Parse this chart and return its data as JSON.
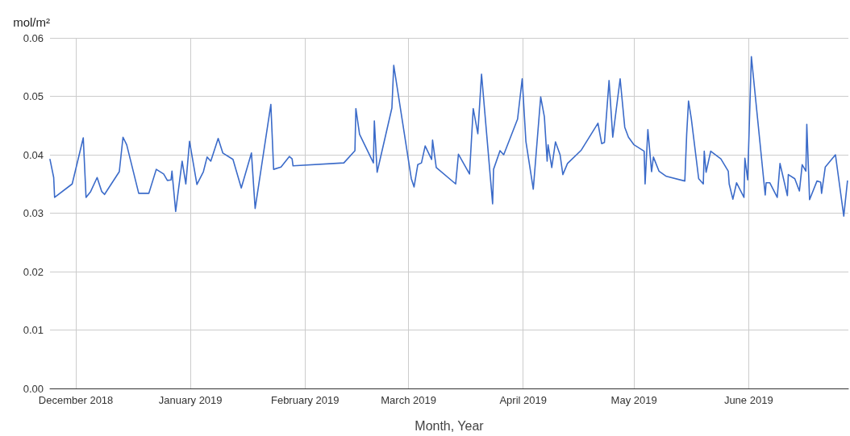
{
  "chart_data": {
    "type": "line",
    "xlabel": "Month, Year",
    "ylabel": "mol/m²",
    "xlim": [
      "2018-11-24",
      "2019-06-28"
    ],
    "xticks": [
      {
        "value": "2018-12-01",
        "label": "December 2018"
      },
      {
        "value": "2019-01-01",
        "label": "January 2019"
      },
      {
        "value": "2019-02-01",
        "label": "February 2019"
      },
      {
        "value": "2019-03-01",
        "label": "March 2019"
      },
      {
        "value": "2019-04-01",
        "label": "April 2019"
      },
      {
        "value": "2019-05-01",
        "label": "May 2019"
      },
      {
        "value": "2019-06-01",
        "label": "June 2019"
      }
    ],
    "ylim": [
      0,
      0.06
    ],
    "yticks": [
      {
        "value": 0,
        "label": "0.00"
      },
      0.01,
      0.02,
      0.03,
      0.04,
      0.05,
      0.06
    ],
    "grid": true,
    "marker": "none",
    "line_style": "solid",
    "x": [
      "2018-11-24T00:00",
      "2018-11-25T00:00",
      "2018-11-25T06:00",
      "2018-11-30T00:00",
      "2018-12-03T00:00",
      "2018-12-03T18:00",
      "2018-12-05T00:00",
      "2018-12-06T18:00",
      "2018-12-08T00:00",
      "2018-12-08T18:00",
      "2018-12-12T18:00",
      "2018-12-13T18:00",
      "2018-12-14T18:00",
      "2018-12-18T00:00",
      "2018-12-20T18:00",
      "2018-12-22T18:00",
      "2018-12-24T18:00",
      "2018-12-25T18:00",
      "2018-12-26T18:00",
      "2018-12-27T00:00",
      "2018-12-27T06:00",
      "2018-12-28T00:00",
      "2018-12-29T18:00",
      "2018-12-30T18:00",
      "2018-12-31T18:00",
      "2019-01-02T18:00",
      "2019-01-04T12:00",
      "2019-01-05T12:00",
      "2019-01-06T12:00",
      "2019-01-08T12:00",
      "2019-01-09T18:00",
      "2019-01-12T12:00",
      "2019-01-14T18:00",
      "2019-01-17T12:00",
      "2019-01-18T12:00",
      "2019-01-22T18:00",
      "2019-01-23T12:00",
      "2019-01-25T12:00",
      "2019-01-27T18:00",
      "2019-01-28T12:00",
      "2019-01-28T18:00",
      "2019-02-11T12:00",
      "2019-02-14T12:00",
      "2019-02-14T18:00",
      "2019-02-15T18:00",
      "2019-02-19T12:00",
      "2019-02-19T18:00",
      "2019-02-20T12:00",
      "2019-02-24T12:00",
      "2019-02-25T00:00",
      "2019-03-01T18:00",
      "2019-03-02T12:00",
      "2019-03-03T12:00",
      "2019-03-04T12:00",
      "2019-03-05T12:00",
      "2019-03-07T06:00",
      "2019-03-07T12:00",
      "2019-03-08T12:00",
      "2019-03-13T18:00",
      "2019-03-14T12:00",
      "2019-03-17T12:00",
      "2019-03-18T12:00",
      "2019-03-19T18:00",
      "2019-03-20T18:00",
      "2019-03-23T18:00",
      "2019-03-24T00:00",
      "2019-03-25T18:00",
      "2019-03-26T18:00",
      "2019-03-30T12:00",
      "2019-03-31T18:00",
      "2019-04-01T18:00",
      "2019-04-03T18:00",
      "2019-04-05T18:00",
      "2019-04-06T18:00",
      "2019-04-07T12:00",
      "2019-04-07T18:00",
      "2019-04-08T18:00",
      "2019-04-09T18:00",
      "2019-04-11T00:00",
      "2019-04-11T18:00",
      "2019-04-13T00:00",
      "2019-04-16T18:00",
      "2019-04-21T06:00",
      "2019-04-22T06:00",
      "2019-04-23T00:00",
      "2019-04-24T06:00",
      "2019-04-25T06:00",
      "2019-04-27T06:00",
      "2019-04-28T12:00",
      "2019-04-29T12:00",
      "2019-05-01T00:00",
      "2019-05-03T18:00",
      "2019-05-04T00:00",
      "2019-05-04T18:00",
      "2019-05-05T18:00",
      "2019-05-06T06:00",
      "2019-05-07T18:00",
      "2019-05-09T18:00",
      "2019-05-14T18:00",
      "2019-05-15T06:00",
      "2019-05-15T18:00",
      "2019-05-16T12:00",
      "2019-05-18T12:00",
      "2019-05-19T18:00",
      "2019-05-20T00:00",
      "2019-05-20T12:00",
      "2019-05-21T18:00",
      "2019-05-24T12:00",
      "2019-05-26T12:00",
      "2019-05-26T18:00",
      "2019-05-27T18:00",
      "2019-05-28T18:00",
      "2019-05-30T18:00",
      "2019-05-31T00:00",
      "2019-05-31T18:00",
      "2019-06-01T18:00",
      "2019-06-05T12:00",
      "2019-06-05T18:00",
      "2019-06-06T18:00",
      "2019-06-08T18:00",
      "2019-06-09T12:00",
      "2019-06-11T12:00",
      "2019-06-11T18:00",
      "2019-06-13T12:00",
      "2019-06-14T18:00",
      "2019-06-15T12:00",
      "2019-06-16T12:00",
      "2019-06-16T18:00",
      "2019-06-17T12:00",
      "2019-06-19T12:00",
      "2019-06-20T12:00",
      "2019-06-20T18:00",
      "2019-06-21T18:00",
      "2019-06-24T12:00",
      "2019-06-26T18:00",
      "2019-06-27T18:00"
    ],
    "series": [
      {
        "color": "#3b6bc9",
        "values": [
          0.0392,
          0.0361,
          0.0327,
          0.035,
          0.0429,
          0.0327,
          0.0337,
          0.0361,
          0.0337,
          0.0332,
          0.0371,
          0.043,
          0.0417,
          0.0334,
          0.0334,
          0.0375,
          0.0367,
          0.0356,
          0.0357,
          0.0372,
          0.0354,
          0.0303,
          0.0389,
          0.035,
          0.0423,
          0.0349,
          0.0371,
          0.0396,
          0.0389,
          0.0428,
          0.0403,
          0.0392,
          0.0343,
          0.0403,
          0.0308,
          0.0486,
          0.0375,
          0.0379,
          0.0397,
          0.0393,
          0.0381,
          0.0386,
          0.0407,
          0.0479,
          0.0435,
          0.0386,
          0.0458,
          0.037,
          0.048,
          0.0553,
          0.0359,
          0.0345,
          0.0383,
          0.0386,
          0.0415,
          0.0392,
          0.0425,
          0.0378,
          0.035,
          0.0401,
          0.0367,
          0.0479,
          0.0436,
          0.0538,
          0.0316,
          0.0375,
          0.0407,
          0.04,
          0.0461,
          0.053,
          0.0423,
          0.0341,
          0.0499,
          0.0465,
          0.0389,
          0.0417,
          0.0378,
          0.0422,
          0.04,
          0.0366,
          0.0385,
          0.0408,
          0.0454,
          0.0419,
          0.0421,
          0.0527,
          0.043,
          0.053,
          0.0447,
          0.043,
          0.0417,
          0.0406,
          0.035,
          0.0443,
          0.0371,
          0.0396,
          0.0372,
          0.0363,
          0.0355,
          0.0435,
          0.0492,
          0.0462,
          0.0359,
          0.035,
          0.0406,
          0.037,
          0.0406,
          0.0393,
          0.0372,
          0.035,
          0.0324,
          0.0352,
          0.0327,
          0.0394,
          0.0357,
          0.0568,
          0.0331,
          0.0352,
          0.0352,
          0.0327,
          0.0385,
          0.033,
          0.0366,
          0.0359,
          0.0338,
          0.0383,
          0.0372,
          0.0452,
          0.0323,
          0.0355,
          0.0353,
          0.0334,
          0.0379,
          0.04,
          0.0295,
          0.0355
        ]
      }
    ]
  }
}
